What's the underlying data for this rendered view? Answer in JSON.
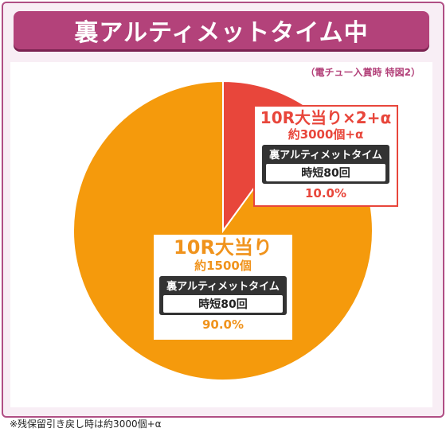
{
  "title": "裏アルティメットタイム中",
  "subtitle": "（電チュー入賞時 特図2）",
  "chart_data": {
    "type": "pie",
    "title": "裏アルティメットタイム中",
    "slices": [
      {
        "label": "10R大当り",
        "payout": "約1500個",
        "mode": "裏アルティメットタイム",
        "jitan": "時短80回",
        "value": 90.0,
        "percent_text": "90.0%",
        "color": "#f59a0c"
      },
      {
        "label": "10R大当り×2+α",
        "payout": "約3000個+α",
        "mode": "裏アルティメットタイム",
        "jitan": "時短80回",
        "value": 10.0,
        "percent_text": "10.0%",
        "color": "#e8463b"
      }
    ]
  },
  "footnote": "※残保留引き戻し時は約3000個+α"
}
